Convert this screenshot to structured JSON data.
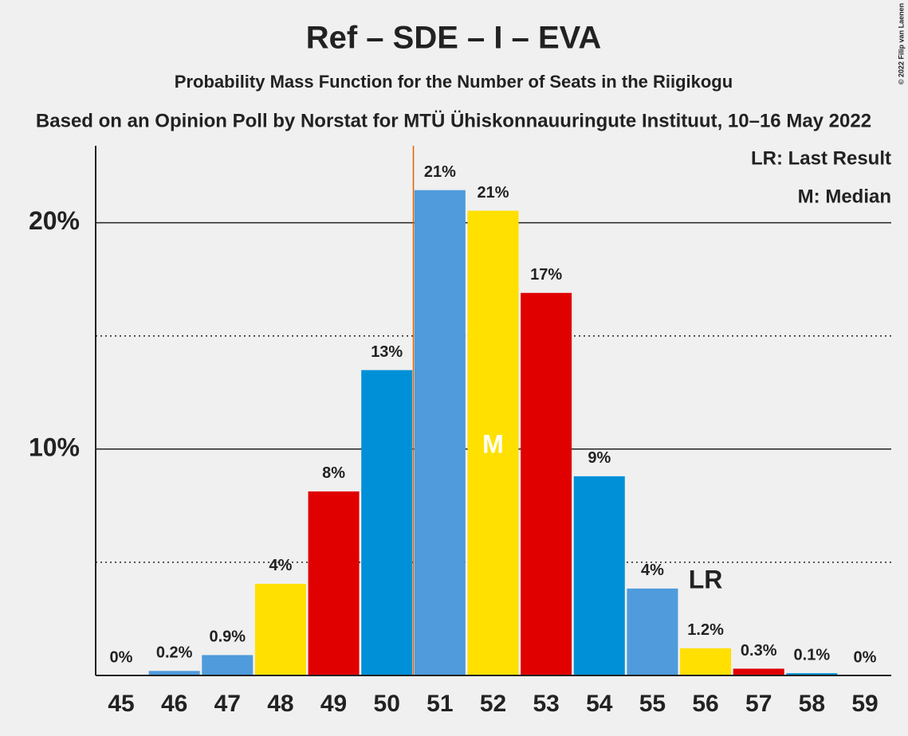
{
  "chart_data": {
    "type": "bar",
    "title": "Ref – SDE – I – EVA",
    "subtitle": "Probability Mass Function for the Number of Seats in the Riigikogu",
    "source": "Based on an Opinion Poll by Norstat for MTÜ Ühiskonnauuringute Instituut, 10–16 May 2022",
    "copyright": "© 2022 Filip van Laenen",
    "categories": [
      "45",
      "46",
      "47",
      "48",
      "49",
      "50",
      "51",
      "52",
      "53",
      "54",
      "55",
      "56",
      "57",
      "58",
      "59"
    ],
    "values": [
      0,
      0.2,
      0.9,
      4.05,
      8.13,
      13.49,
      21.44,
      20.53,
      16.9,
      8.8,
      3.84,
      1.2,
      0.3,
      0.1,
      0
    ],
    "value_labels": [
      "0%",
      "0.2%",
      "0.9%",
      "4%",
      "8%",
      "13%",
      "21%",
      "21%",
      "17%",
      "9%",
      "4%",
      "1.2%",
      "0.3%",
      "0.1%",
      "0%"
    ],
    "colors": [
      "#4f9bdc",
      "#4f9bdc",
      "#4f9bdc",
      "#ffe000",
      "#e00000",
      "#0090d8",
      "#4f9bdc",
      "#ffe000",
      "#e00000",
      "#0090d8",
      "#4f9bdc",
      "#ffe000",
      "#e00000",
      "#0090d8",
      "#4f9bdc"
    ],
    "ylim": [
      0,
      23.4
    ],
    "yticks": [
      {
        "value": 10,
        "label": "10%"
      },
      {
        "value": 20,
        "label": "20%"
      }
    ],
    "minor_yticks": [
      5,
      15
    ],
    "grid": true,
    "median": {
      "index": 7,
      "label": "M"
    },
    "last_result": {
      "index": 11,
      "label": "LR"
    },
    "vline": {
      "after_index": 5,
      "color": "#e06000"
    },
    "legend": [
      "LR: Last Result",
      "M: Median"
    ]
  }
}
